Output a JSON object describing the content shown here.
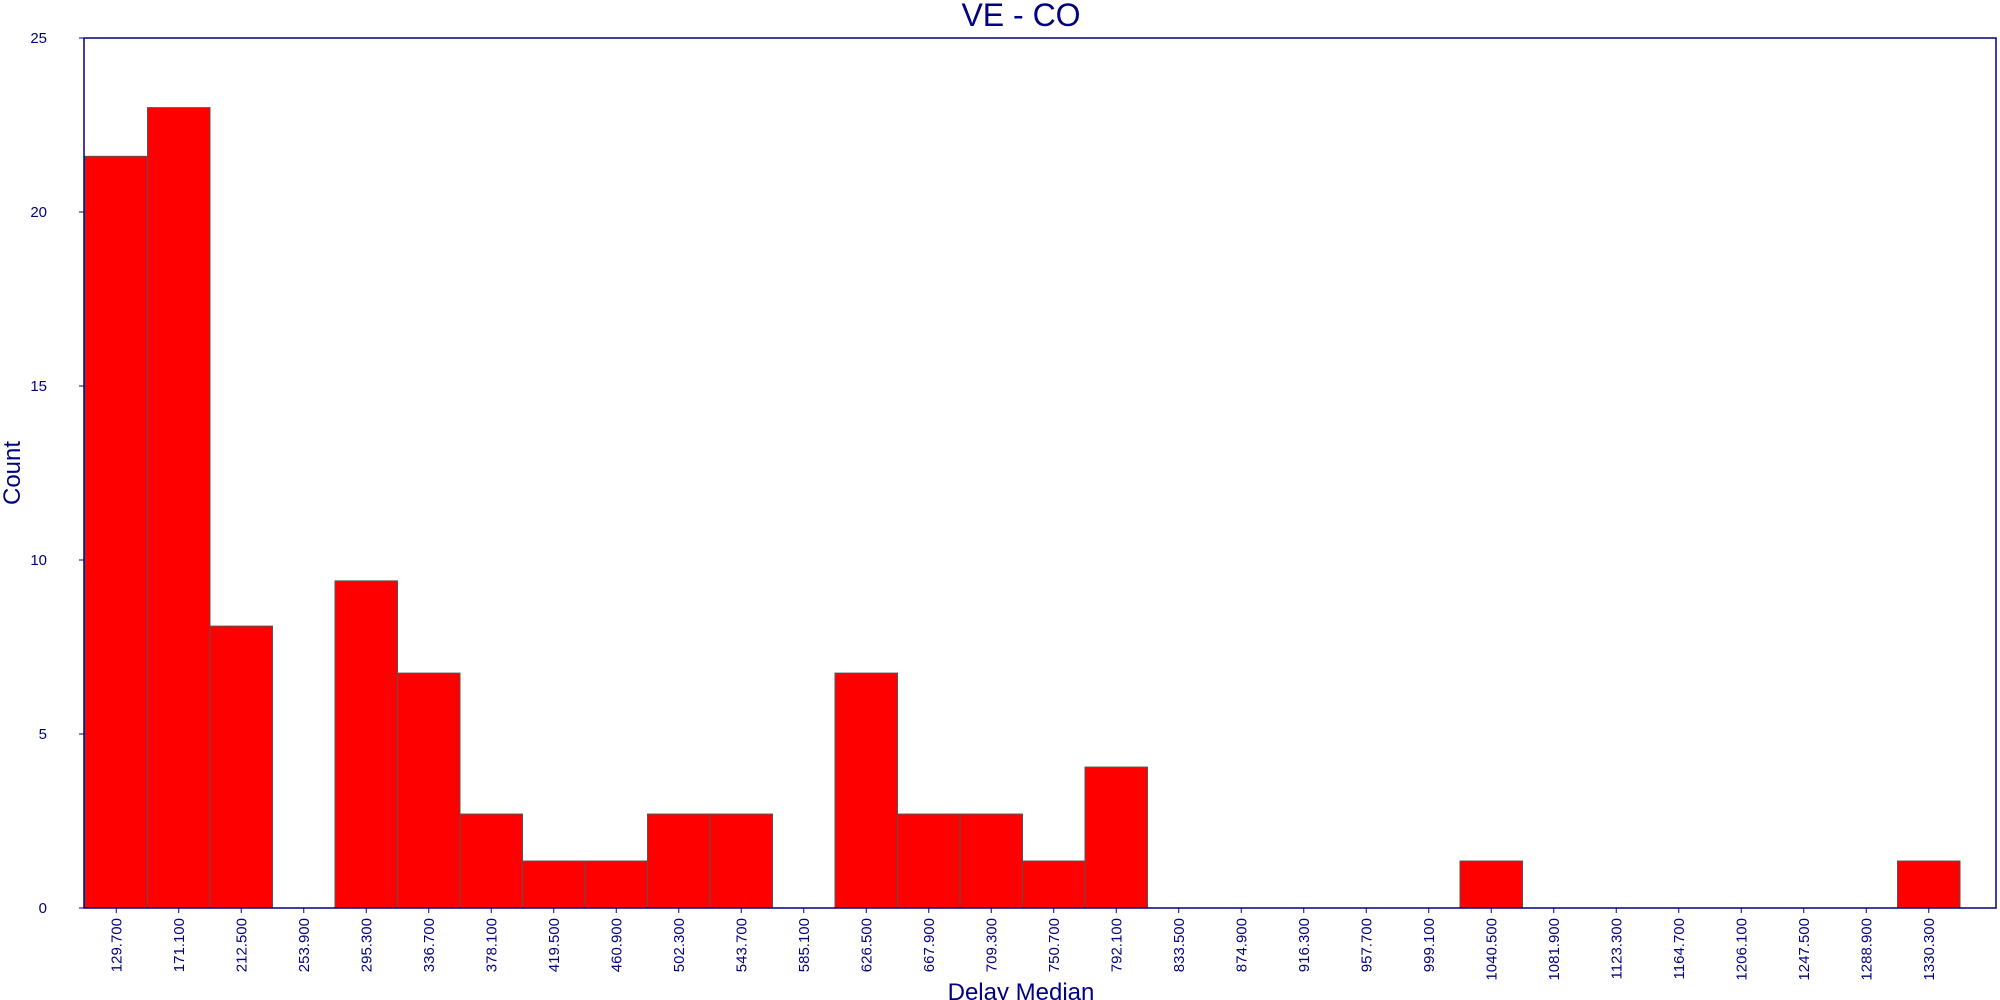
{
  "chart_data": {
    "type": "bar",
    "title": "VE - CO",
    "xlabel": "Delay Median",
    "ylabel": "Count",
    "ylim": [
      0,
      25
    ],
    "yticks": [
      "0",
      "5",
      "10",
      "15",
      "20",
      "25"
    ],
    "categories": [
      "129.700",
      "171.100",
      "212.500",
      "253.900",
      "295.300",
      "336.700",
      "378.100",
      "419.500",
      "460.900",
      "502.300",
      "543.700",
      "585.100",
      "626.500",
      "667.900",
      "709.300",
      "750.700",
      "792.100",
      "833.500",
      "874.900",
      "916.300",
      "957.700",
      "999.100",
      "1040.500",
      "1081.900",
      "1123.300",
      "1164.700",
      "1206.100",
      "1247.500",
      "1288.900",
      "1330.300"
    ],
    "values": [
      21.6,
      23.0,
      8.1,
      0,
      9.4,
      6.75,
      2.7,
      1.35,
      1.35,
      2.7,
      2.7,
      0,
      6.75,
      2.7,
      2.7,
      1.35,
      4.05,
      0,
      0,
      0,
      0,
      0,
      1.35,
      0,
      0,
      0,
      0,
      0,
      0,
      1.35
    ],
    "bar_color": "#ff0000",
    "axis_color": "#000080",
    "grid": false,
    "legend": "none"
  }
}
